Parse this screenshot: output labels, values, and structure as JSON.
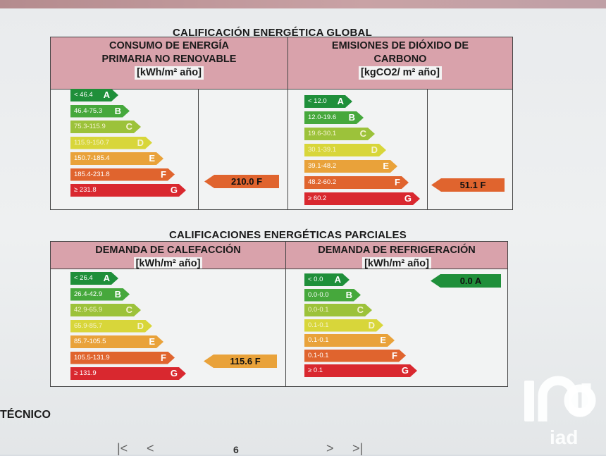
{
  "global": {
    "title": "CALIFICACIÓN ENERGÉTICA GLOBAL",
    "left": {
      "header_line1": "CONSUMO DE ENERGÍA",
      "header_line2": "PRIMARIA NO RENOVABLE",
      "unit": "[kWh/m² año]",
      "bands": [
        {
          "range": "< 46.4",
          "letter": "A"
        },
        {
          "range": "46.4-75.3",
          "letter": "B"
        },
        {
          "range": "75.3-115.9",
          "letter": "C"
        },
        {
          "range": "115.9-150.7",
          "letter": "D"
        },
        {
          "range": "150.7-185.4",
          "letter": "E"
        },
        {
          "range": "185.4-231.8",
          "letter": "F"
        },
        {
          "range": "≥ 231.8",
          "letter": "G"
        }
      ],
      "rating": "210.0 F"
    },
    "right": {
      "header_line1": "EMISIONES DE DIÓXIDO DE",
      "header_line2": "CARBONO",
      "unit": "[kgCO2/ m² año]",
      "bands": [
        {
          "range": "< 12.0",
          "letter": "A"
        },
        {
          "range": "12.0-19.6",
          "letter": "B"
        },
        {
          "range": "19.6-30.1",
          "letter": "C"
        },
        {
          "range": "30.1-39.1",
          "letter": "D"
        },
        {
          "range": "39.1-48.2",
          "letter": "E"
        },
        {
          "range": "48.2-60.2",
          "letter": "F"
        },
        {
          "range": "≥ 60.2",
          "letter": "G"
        }
      ],
      "rating": "51.1 F"
    }
  },
  "partial": {
    "title": "CALIFICACIONES ENERGÉTICAS PARCIALES",
    "left": {
      "header_line1": "DEMANDA DE CALEFACCIÓN",
      "unit": "[kWh/m² año]",
      "bands": [
        {
          "range": "< 26.4",
          "letter": "A"
        },
        {
          "range": "26.4-42.9",
          "letter": "B"
        },
        {
          "range": "42.9-65.9",
          "letter": "C"
        },
        {
          "range": "65.9-85.7",
          "letter": "D"
        },
        {
          "range": "85.7-105.5",
          "letter": "E"
        },
        {
          "range": "105.5-131.9",
          "letter": "F"
        },
        {
          "range": "≥ 131.9",
          "letter": "G"
        }
      ],
      "rating": "115.6 F"
    },
    "right": {
      "header_line1": "DEMANDA DE REFRIGERACIÓN",
      "unit": "[kWh/m² año]",
      "bands": [
        {
          "range": "< 0.0",
          "letter": "A"
        },
        {
          "range": "0.0-0.0",
          "letter": "B"
        },
        {
          "range": "0.0-0.1",
          "letter": "C"
        },
        {
          "range": "0.1-0.1",
          "letter": "D"
        },
        {
          "range": "0.1-0.1",
          "letter": "E"
        },
        {
          "range": "0.1-0.1",
          "letter": "F"
        },
        {
          "range": "≥ 0.1",
          "letter": "G"
        }
      ],
      "rating": "0.0 A"
    }
  },
  "colors": {
    "A": "#1f8f3a",
    "B": "#46a83c",
    "C": "#9cc23a",
    "D": "#d8d63a",
    "E": "#e9a23a",
    "F": "#e0642e",
    "G": "#d9282f"
  },
  "footer": {
    "section_fragment": "TÉCNICO",
    "page_number": "6",
    "nav_first": "|<",
    "nav_prev": "<",
    "nav_next": ">",
    "nav_last": ">|",
    "logo_text": "iad"
  }
}
